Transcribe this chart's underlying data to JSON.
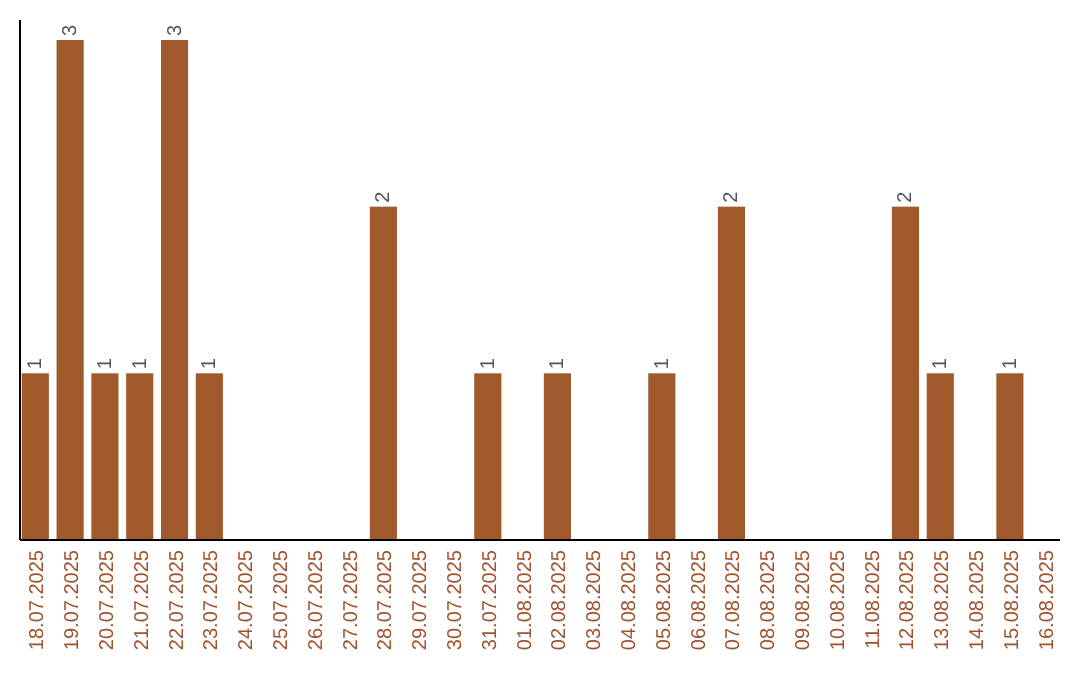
{
  "chart_data": {
    "type": "bar",
    "categories": [
      "18.07.2025",
      "19.07.2025",
      "20.07.2025",
      "21.07.2025",
      "22.07.2025",
      "23.07.2025",
      "24.07.2025",
      "25.07.2025",
      "26.07.2025",
      "27.07.2025",
      "28.07.2025",
      "29.07.2025",
      "30.07.2025",
      "31.07.2025",
      "01.08.2025",
      "02.08.2025",
      "03.08.2025",
      "04.08.2025",
      "05.08.2025",
      "06.08.2025",
      "07.08.2025",
      "08.08.2025",
      "09.08.2025",
      "10.08.2025",
      "11.08.2025",
      "12.08.2025",
      "13.08.2025",
      "14.08.2025",
      "15.08.2025",
      "16.08.2025"
    ],
    "values": [
      1,
      3,
      1,
      1,
      3,
      1,
      0,
      0,
      0,
      0,
      2,
      0,
      0,
      1,
      0,
      1,
      0,
      0,
      1,
      0,
      2,
      0,
      0,
      0,
      0,
      2,
      1,
      0,
      1,
      0
    ],
    "value_labels": [
      "1",
      "3",
      "1",
      "1",
      "3",
      "1",
      null,
      null,
      null,
      null,
      "2",
      null,
      null,
      "1",
      null,
      "1",
      null,
      null,
      "1",
      null,
      "2",
      null,
      null,
      null,
      null,
      "2",
      "1",
      null,
      "1",
      null
    ],
    "color": "#a0592a",
    "tick_labels": "x"
  }
}
